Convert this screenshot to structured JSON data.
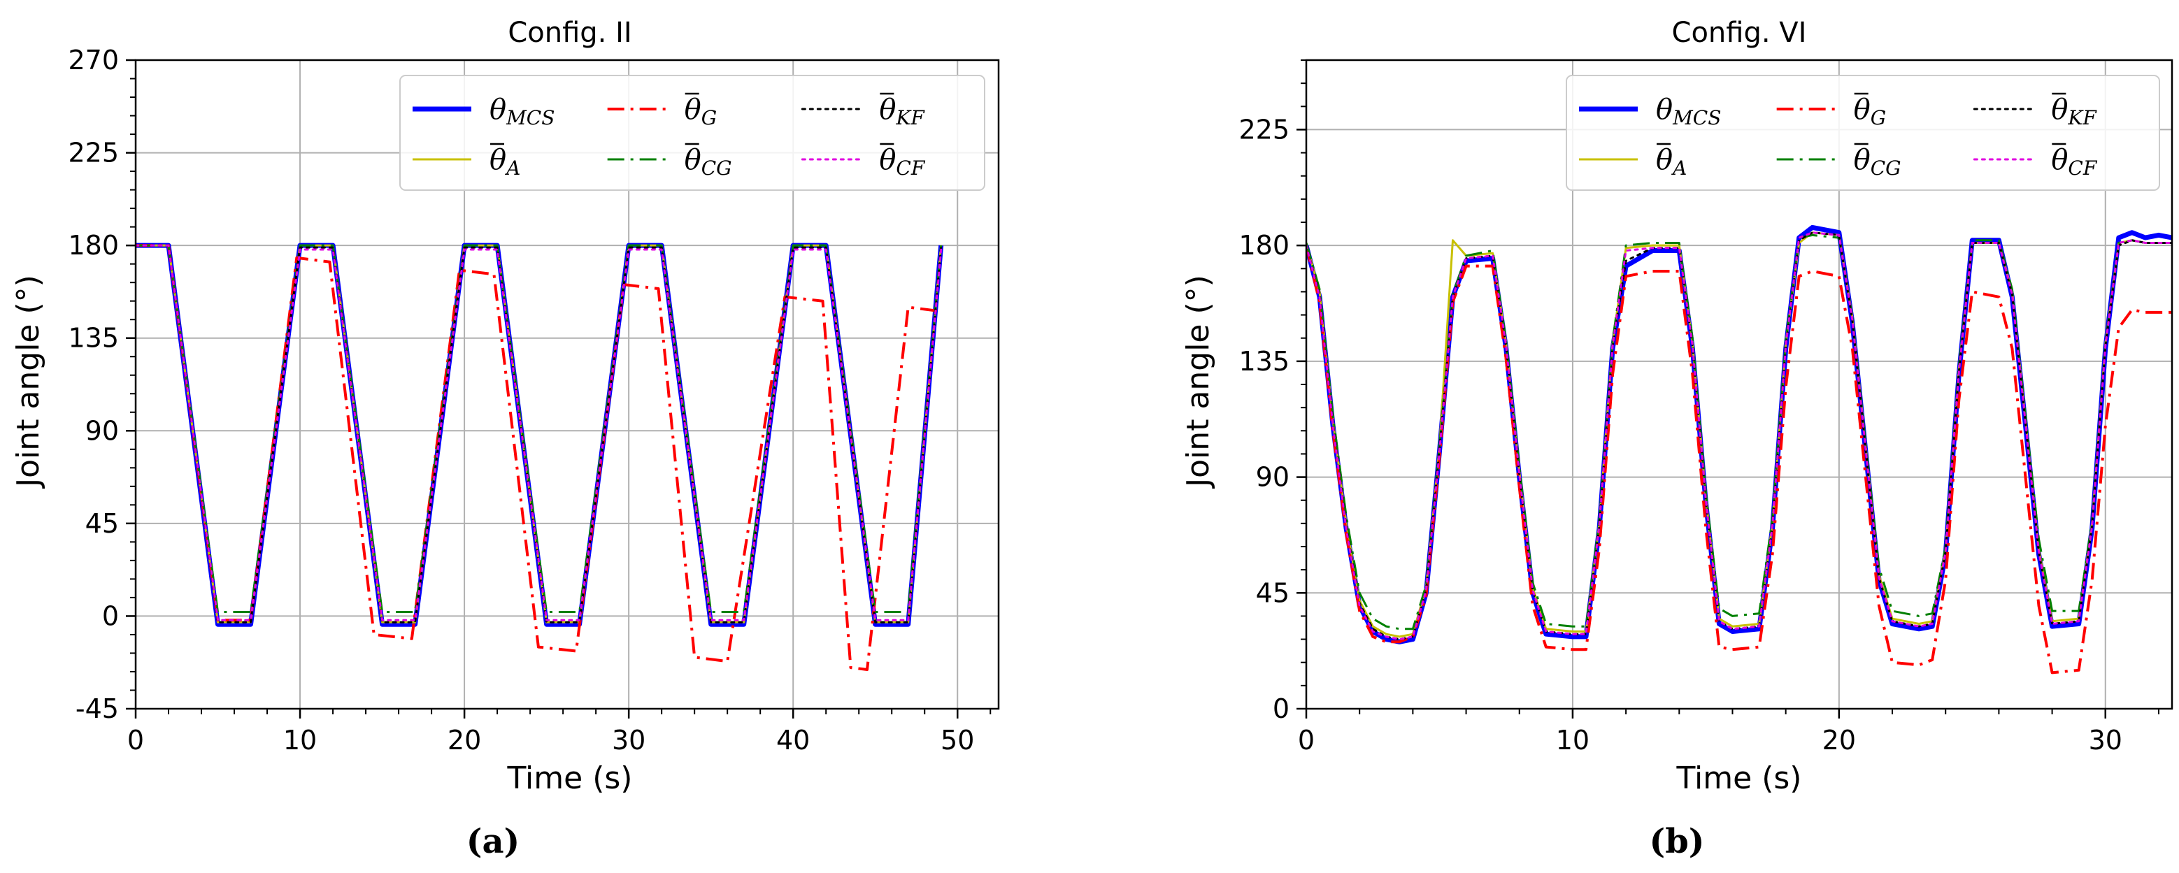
{
  "chart_data": [
    {
      "id": "a",
      "type": "line",
      "title": "Config. II",
      "caption": "(a)",
      "xlabel": "Time (s)",
      "ylabel": "Joint angle (°)",
      "xlim": [
        0,
        52.5
      ],
      "ylim": [
        -45,
        270
      ],
      "xticks": [
        0,
        10,
        20,
        30,
        40,
        50
      ],
      "yticks": [
        -45,
        0,
        45,
        90,
        135,
        180,
        225,
        270
      ],
      "xtick_labels": [
        "0",
        "10",
        "20",
        "30",
        "40",
        "50"
      ],
      "ytick_labels": [
        "-45",
        "0",
        "45",
        "90",
        "135",
        "180",
        "225",
        "270"
      ],
      "legend_position": "top-right",
      "series": [
        {
          "key": "mcs",
          "name": "θ",
          "sub": "MCS",
          "bar": false,
          "color": "#0000ff",
          "dash": "solid",
          "width": 7,
          "x": [
            0,
            2,
            5,
            7,
            10,
            12,
            15,
            17,
            20,
            22,
            25,
            27,
            30,
            32,
            35,
            37,
            40,
            42,
            45,
            47,
            49
          ],
          "y": [
            180,
            180,
            -4,
            -4,
            180,
            180,
            -4,
            -4,
            180,
            180,
            -4,
            -4,
            180,
            180,
            -4,
            -4,
            180,
            180,
            -4,
            -4,
            180
          ]
        },
        {
          "key": "a",
          "name": "θ",
          "sub": "A",
          "bar": true,
          "color": "#c8c000",
          "dash": "solid",
          "width": 3,
          "x": [
            0,
            2,
            5,
            7,
            10,
            12,
            15,
            17,
            20,
            22,
            25,
            27,
            30,
            32,
            35,
            37,
            40,
            42,
            45,
            47,
            49
          ],
          "y": [
            180,
            180,
            -3,
            -3,
            180,
            180,
            -3,
            -3,
            180,
            180,
            -3,
            -3,
            180,
            180,
            -3,
            -3,
            180,
            180,
            -3,
            -3,
            180
          ]
        },
        {
          "key": "g",
          "name": "θ",
          "sub": "G",
          "bar": true,
          "color": "#ff0000",
          "dash": "dashdot",
          "width": 4,
          "x": [
            0,
            2,
            5,
            7,
            9.8,
            11.8,
            14.5,
            16.8,
            19.7,
            21.8,
            24.5,
            26.8,
            29.7,
            31.8,
            34,
            36,
            39.5,
            41.8,
            43.5,
            44.5,
            47,
            49
          ],
          "y": [
            180,
            180,
            -2,
            -2,
            174,
            172,
            -9,
            -11,
            168,
            166,
            -15,
            -17,
            161,
            159,
            -20,
            -22,
            155,
            153,
            -25,
            -26,
            150,
            148
          ]
        },
        {
          "key": "cg",
          "name": "θ",
          "sub": "CG",
          "bar": true,
          "color": "#008000",
          "dash": "dashdot",
          "width": 3,
          "x": [
            0,
            2,
            5,
            7,
            10,
            12,
            15,
            17,
            20,
            22,
            25,
            27,
            30,
            32,
            35,
            37,
            40,
            42,
            45,
            47,
            49
          ],
          "y": [
            180,
            180,
            2,
            2,
            180,
            180,
            2,
            2,
            180,
            180,
            2,
            2,
            180,
            180,
            2,
            2,
            180,
            180,
            2,
            2,
            180
          ]
        },
        {
          "key": "kf",
          "name": "θ",
          "sub": "KF",
          "bar": true,
          "color": "#000000",
          "dash": "dot",
          "width": 3,
          "x": [
            0,
            2,
            5,
            7,
            10,
            12,
            15,
            17,
            20,
            22,
            25,
            27,
            30,
            32,
            35,
            37,
            40,
            42,
            45,
            47,
            49
          ],
          "y": [
            180,
            180,
            -3,
            -3,
            179,
            179,
            -3,
            -3,
            179,
            179,
            -3,
            -3,
            179,
            179,
            -3,
            -3,
            179,
            179,
            -3,
            -3,
            179
          ]
        },
        {
          "key": "cf",
          "name": "θ",
          "sub": "CF",
          "bar": true,
          "color": "#e000e0",
          "dash": "dot",
          "width": 3,
          "x": [
            0,
            2,
            5,
            7,
            10,
            12,
            15,
            17,
            20,
            22,
            25,
            27,
            30,
            32,
            35,
            37,
            40,
            42,
            45,
            47,
            49
          ],
          "y": [
            180,
            180,
            -2,
            -2,
            178,
            178,
            -2,
            -2,
            178,
            178,
            -2,
            -2,
            178,
            178,
            -2,
            -2,
            178,
            178,
            -2,
            -2,
            178
          ]
        }
      ]
    },
    {
      "id": "b",
      "type": "line",
      "title": "Config. VI",
      "caption": "(b)",
      "xlabel": "Time (s)",
      "ylabel": "Joint angle (°)",
      "xlim": [
        0,
        32.5
      ],
      "ylim": [
        0,
        252
      ],
      "xticks": [
        0,
        10,
        20,
        30
      ],
      "yticks": [
        0,
        45,
        90,
        135,
        180,
        225
      ],
      "xtick_labels": [
        "0",
        "10",
        "20",
        "30"
      ],
      "ytick_labels": [
        "0",
        "45",
        "90",
        "135",
        "180",
        "225"
      ],
      "legend_position": "top-right",
      "series": [
        {
          "key": "mcs",
          "name": "θ",
          "sub": "MCS",
          "bar": false,
          "color": "#0000ff",
          "dash": "solid",
          "width": 7,
          "x": [
            0,
            0.5,
            1,
            1.5,
            2,
            2.5,
            3,
            3.5,
            4,
            4.5,
            5,
            5.5,
            6,
            7,
            7.5,
            8,
            8.5,
            9,
            10,
            10.5,
            11,
            11.5,
            12,
            13,
            14,
            14.5,
            15,
            15.5,
            16,
            17,
            17.5,
            18,
            18.5,
            19,
            20,
            20.5,
            21,
            21.5,
            22,
            23,
            23.5,
            24,
            24.5,
            25,
            26,
            26.5,
            27,
            27.5,
            28,
            29,
            29.5,
            30,
            30.5,
            31,
            31.5,
            32,
            32.5
          ],
          "y": [
            180,
            160,
            110,
            70,
            40,
            30,
            27,
            26,
            27,
            45,
            100,
            160,
            174,
            175,
            140,
            90,
            45,
            29,
            28,
            28,
            70,
            140,
            172,
            178,
            178,
            140,
            80,
            33,
            30,
            31,
            70,
            140,
            183,
            187,
            185,
            150,
            100,
            50,
            33,
            31,
            32,
            60,
            130,
            182,
            182,
            160,
            110,
            60,
            32,
            33,
            70,
            140,
            183,
            185,
            183,
            184,
            183
          ]
        },
        {
          "key": "a",
          "name": "θ",
          "sub": "A",
          "bar": true,
          "color": "#c8c000",
          "dash": "solid",
          "width": 3,
          "x": [
            0,
            0.5,
            1,
            1.5,
            2,
            2.5,
            3,
            3.5,
            4,
            4.5,
            5,
            5.5,
            6,
            7,
            7.5,
            8,
            8.5,
            9,
            10,
            10.5,
            11,
            11.5,
            12,
            13,
            14,
            14.5,
            15,
            15.5,
            16,
            17,
            17.5,
            18,
            18.5,
            19,
            20,
            20.5,
            21,
            21.5,
            22,
            23,
            23.5,
            24,
            24.5,
            25,
            26,
            26.5,
            27,
            27.5,
            28,
            29,
            29.5,
            30,
            30.5,
            31,
            31.5,
            32,
            32.5
          ],
          "y": [
            181,
            162,
            112,
            72,
            42,
            32,
            29,
            28,
            29,
            47,
            102,
            182,
            176,
            177,
            142,
            92,
            47,
            31,
            30,
            30,
            72,
            142,
            179,
            180,
            180,
            142,
            82,
            35,
            32,
            33,
            72,
            142,
            181,
            185,
            184,
            152,
            102,
            52,
            35,
            33,
            34,
            62,
            132,
            181,
            181,
            162,
            112,
            62,
            34,
            35,
            72,
            142,
            181,
            182,
            181,
            181,
            181
          ]
        },
        {
          "key": "g",
          "name": "θ",
          "sub": "G",
          "bar": true,
          "color": "#ff0000",
          "dash": "dashdot",
          "width": 4,
          "x": [
            0,
            0.5,
            1,
            1.5,
            2,
            2.5,
            3,
            3.5,
            4,
            4.5,
            5,
            5.5,
            6,
            7,
            7.5,
            8,
            8.5,
            9,
            10,
            10.5,
            11,
            11.5,
            12,
            13,
            14,
            14.5,
            15,
            15.5,
            16,
            17,
            17.5,
            18,
            18.5,
            19,
            20,
            20.5,
            21,
            21.5,
            22,
            23,
            23.5,
            24,
            24.5,
            25,
            26,
            26.5,
            27,
            27.5,
            28,
            29,
            29.5,
            30,
            30.5,
            31,
            31.5,
            32,
            32.5
          ],
          "y": [
            180,
            158,
            108,
            68,
            38,
            28,
            26,
            26,
            28,
            44,
            98,
            158,
            172,
            172,
            136,
            86,
            40,
            24,
            23,
            23,
            62,
            130,
            168,
            170,
            170,
            130,
            70,
            24,
            23,
            24,
            60,
            125,
            168,
            170,
            168,
            140,
            90,
            40,
            18,
            17,
            19,
            50,
            120,
            162,
            160,
            140,
            90,
            40,
            14,
            15,
            50,
            110,
            148,
            155,
            154,
            154,
            154
          ]
        },
        {
          "key": "cg",
          "name": "θ",
          "sub": "CG",
          "bar": true,
          "color": "#008000",
          "dash": "dashdot",
          "width": 3,
          "x": [
            0,
            0.5,
            1,
            1.5,
            2,
            2.5,
            3,
            3.5,
            4,
            4.5,
            5,
            5.5,
            6,
            7,
            7.5,
            8,
            8.5,
            9,
            10,
            10.5,
            11,
            11.5,
            12,
            13,
            14,
            14.5,
            15,
            15.5,
            16,
            17,
            17.5,
            18,
            18.5,
            19,
            20,
            20.5,
            21,
            21.5,
            22,
            23,
            23.5,
            24,
            24.5,
            25,
            26,
            26.5,
            27,
            27.5,
            28,
            29,
            29.5,
            30,
            30.5,
            31,
            31.5,
            32,
            32.5
          ],
          "y": [
            181,
            163,
            114,
            75,
            45,
            35,
            32,
            31,
            31,
            48,
            102,
            161,
            176,
            178,
            143,
            94,
            49,
            33,
            32,
            32,
            73,
            143,
            180,
            181,
            181,
            144,
            84,
            39,
            36,
            37,
            74,
            143,
            183,
            184,
            183,
            152,
            103,
            55,
            38,
            36,
            37,
            63,
            133,
            182,
            182,
            163,
            114,
            66,
            38,
            38,
            73,
            142,
            181,
            182,
            181,
            181,
            181
          ]
        },
        {
          "key": "kf",
          "name": "θ",
          "sub": "KF",
          "bar": true,
          "color": "#000000",
          "dash": "dot",
          "width": 3,
          "x": [
            0,
            0.5,
            1,
            1.5,
            2,
            2.5,
            3,
            3.5,
            4,
            4.5,
            5,
            5.5,
            6,
            7,
            7.5,
            8,
            8.5,
            9,
            10,
            10.5,
            11,
            11.5,
            12,
            13,
            14,
            14.5,
            15,
            15.5,
            16,
            17,
            17.5,
            18,
            18.5,
            19,
            20,
            20.5,
            21,
            21.5,
            22,
            23,
            23.5,
            24,
            24.5,
            25,
            26,
            26.5,
            27,
            27.5,
            28,
            29,
            29.5,
            30,
            30.5,
            31,
            31.5,
            32,
            32.5
          ],
          "y": [
            180,
            161,
            111,
            71,
            41,
            31,
            28,
            27,
            28,
            46,
            101,
            160,
            175,
            176,
            141,
            91,
            46,
            30,
            29,
            29,
            71,
            141,
            174,
            179,
            179,
            141,
            81,
            34,
            31,
            32,
            71,
            141,
            182,
            185,
            184,
            151,
            101,
            51,
            34,
            32,
            33,
            61,
            131,
            181,
            181,
            161,
            111,
            61,
            33,
            34,
            71,
            141,
            180,
            182,
            181,
            181,
            181
          ]
        },
        {
          "key": "cf",
          "name": "θ",
          "sub": "CF",
          "bar": true,
          "color": "#e000e0",
          "dash": "dot",
          "width": 3,
          "x": [
            0,
            0.5,
            1,
            1.5,
            2,
            2.5,
            3,
            3.5,
            4,
            4.5,
            5,
            5.5,
            6,
            7,
            7.5,
            8,
            8.5,
            9,
            10,
            10.5,
            11,
            11.5,
            12,
            13,
            14,
            14.5,
            15,
            15.5,
            16,
            17,
            17.5,
            18,
            18.5,
            19,
            20,
            20.5,
            21,
            21.5,
            22,
            23,
            23.5,
            24,
            24.5,
            25,
            26,
            26.5,
            27,
            27.5,
            28,
            29,
            29.5,
            30,
            30.5,
            31,
            31.5,
            32,
            32.5
          ],
          "y": [
            180,
            160,
            110,
            70,
            40,
            30,
            28,
            27,
            28,
            46,
            100,
            160,
            175,
            176,
            141,
            91,
            46,
            30,
            29,
            29,
            71,
            141,
            178,
            179,
            179,
            141,
            81,
            34,
            31,
            32,
            71,
            141,
            183,
            185,
            184,
            151,
            101,
            51,
            34,
            32,
            33,
            61,
            131,
            181,
            181,
            161,
            111,
            61,
            33,
            34,
            71,
            141,
            181,
            182,
            181,
            181,
            181
          ]
        }
      ]
    }
  ]
}
